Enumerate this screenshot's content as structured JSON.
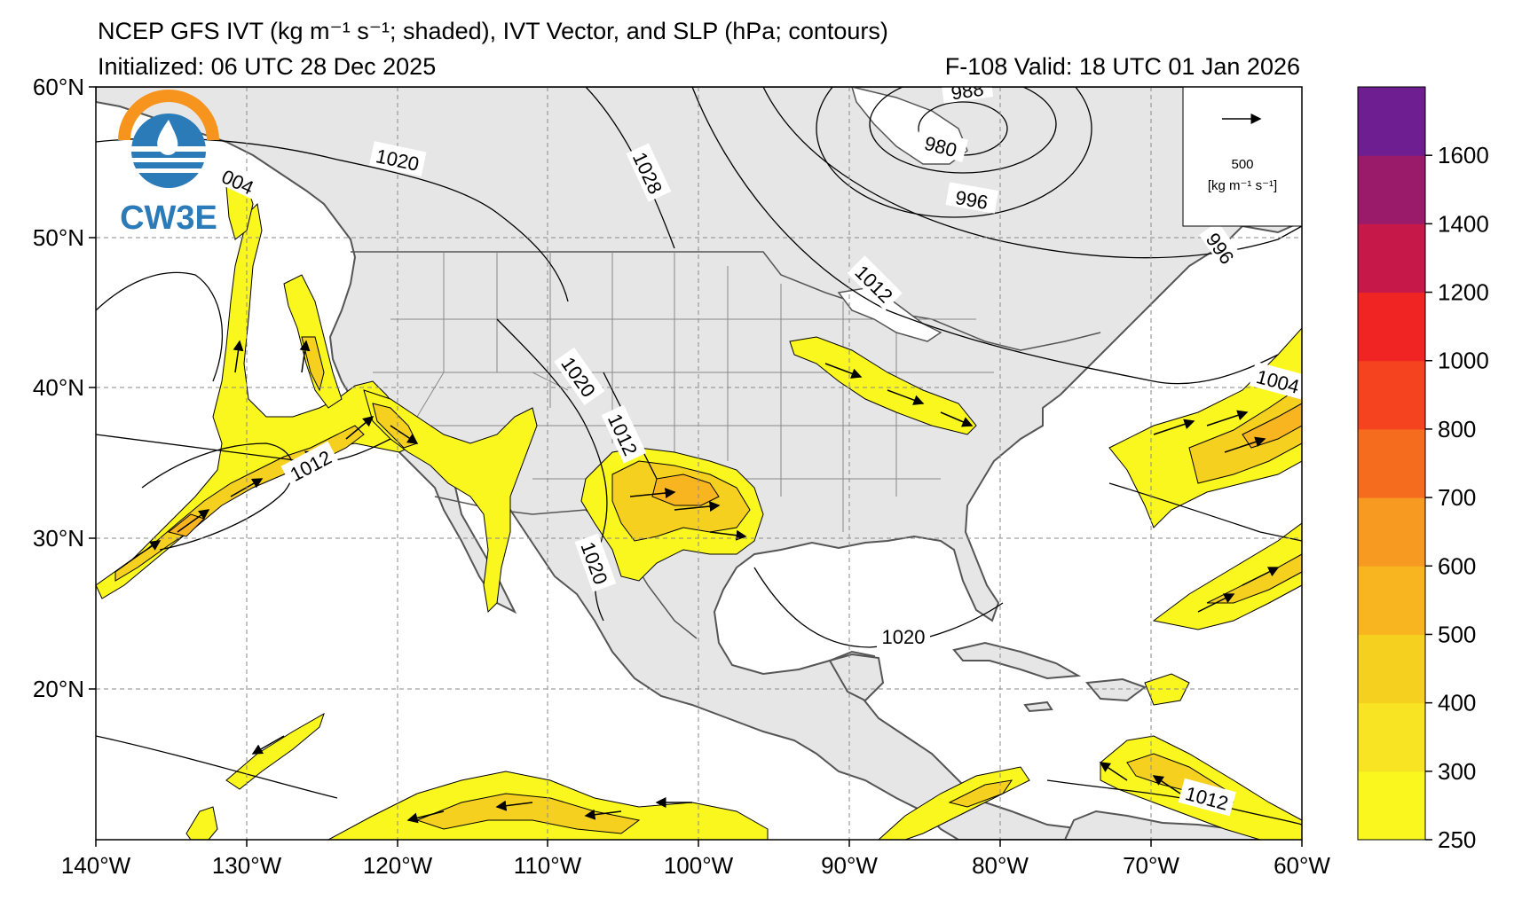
{
  "title": {
    "line1": "NCEP GFS IVT (kg m⁻¹ s⁻¹; shaded), IVT Vector, and SLP (hPa; contours)",
    "initialized": "Initialized: 06 UTC 28 Dec 2025",
    "valid": "F-108  Valid: 18 UTC 01 Jan 2026"
  },
  "logo": {
    "text": "CW3E",
    "colors": {
      "orange": "#F7941D",
      "blue": "#2B7BB9"
    }
  },
  "axes": {
    "lon_ticks": [
      "140°W",
      "130°W",
      "120°W",
      "110°W",
      "100°W",
      "90°W",
      "80°W",
      "70°W",
      "60°W"
    ],
    "lat_ticks": [
      "60°N",
      "50°N",
      "40°N",
      "30°N",
      "20°N"
    ],
    "lon_range": [
      -140,
      -60
    ],
    "lat_range": [
      10,
      60
    ]
  },
  "vector_legend": {
    "value": "500",
    "units": "[kg m⁻¹ s⁻¹]"
  },
  "colorbar": {
    "levels": [
      250,
      300,
      400,
      500,
      600,
      700,
      800,
      1000,
      1200,
      1400,
      1600,
      1800
    ],
    "labels": [
      "250",
      "300",
      "400",
      "500",
      "600",
      "700",
      "800",
      "1000",
      "1200",
      "1400",
      "1600"
    ],
    "colors": [
      "#FAF71E",
      "#F8E423",
      "#F6D01F",
      "#F8B520",
      "#F79A22",
      "#F66C1F",
      "#F4431E",
      "#EF2423",
      "#C6194A",
      "#9A1B6A",
      "#6E1E90"
    ]
  },
  "slp_labels": [
    "1020",
    "1028",
    "988",
    "980",
    "996",
    "004",
    "1012",
    "1020",
    "1012",
    "1012",
    "1020",
    "1020",
    "996",
    "1004",
    "1012"
  ],
  "colors": {
    "land": "#E6E6E6",
    "ocean": "#FFFFFF",
    "grid": "#8A8A8A",
    "coast": "#555555"
  }
}
